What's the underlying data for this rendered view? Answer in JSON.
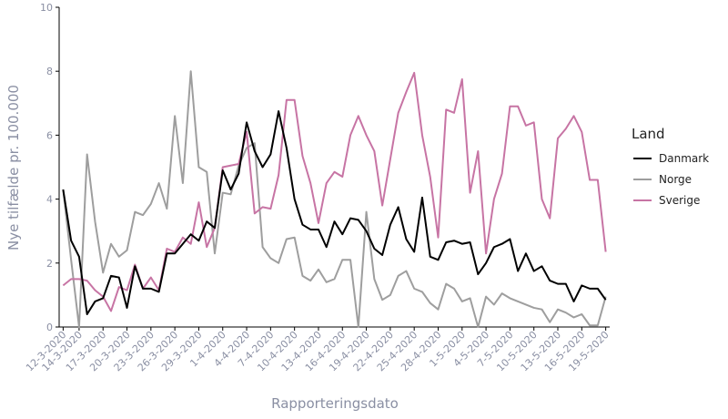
{
  "chart_data": {
    "type": "line",
    "xlabel": "Rapporteringsdato",
    "ylabel": "Nye tilfælde pr. 100.000",
    "ylim": [
      0,
      10
    ],
    "yticks": [
      0,
      2,
      4,
      6,
      8,
      10
    ],
    "grid": false,
    "legend": {
      "title": "Land",
      "placement": "right"
    },
    "x": [
      "12-3-2020",
      "13-3-2020",
      "14-3-2020",
      "15-3-2020",
      "16-3-2020",
      "17-3-2020",
      "18-3-2020",
      "19-3-2020",
      "20-3-2020",
      "21-3-2020",
      "22-3-2020",
      "23-3-2020",
      "24-3-2020",
      "25-3-2020",
      "26-3-2020",
      "27-3-2020",
      "28-3-2020",
      "29-3-2020",
      "30-3-2020",
      "31-3-2020",
      "1-4-2020",
      "2-4-2020",
      "3-4-2020",
      "4-4-2020",
      "5-4-2020",
      "6-4-2020",
      "7-4-2020",
      "8-4-2020",
      "9-4-2020",
      "10-4-2020",
      "11-4-2020",
      "12-4-2020",
      "13-4-2020",
      "14-4-2020",
      "15-4-2020",
      "16-4-2020",
      "17-4-2020",
      "18-4-2020",
      "19-4-2020",
      "20-4-2020",
      "21-4-2020",
      "22-4-2020",
      "23-4-2020",
      "24-4-2020",
      "25-4-2020",
      "26-4-2020",
      "27-4-2020",
      "28-4-2020",
      "29-4-2020",
      "30-4-2020",
      "1-5-2020",
      "2-5-2020",
      "3-5-2020",
      "4-5-2020",
      "5-5-2020",
      "6-5-2020",
      "7-5-2020",
      "8-5-2020",
      "9-5-2020",
      "10-5-2020",
      "11-5-2020",
      "12-5-2020",
      "13-5-2020",
      "14-5-2020",
      "15-5-2020",
      "16-5-2020",
      "17-5-2020",
      "18-5-2020",
      "19-5-2020"
    ],
    "xtick_labels": [
      "12-3-2020",
      "14-3-2020",
      "17-3-2020",
      "20-3-2020",
      "23-3-2020",
      "26-3-2020",
      "29-3-2020",
      "1-4-2020",
      "4-4-2020",
      "7-4-2020",
      "10-4-2020",
      "13-4-2020",
      "16-4-2020",
      "19-4-2020",
      "22-4-2020",
      "25-4-2020",
      "28-4-2020",
      "1-5-2020",
      "4-5-2020",
      "7-5-2020",
      "10-5-2020",
      "13-5-2020",
      "16-5-2020",
      "19-5-2020"
    ],
    "series": [
      {
        "name": "Danmark",
        "color": "#000000",
        "values": [
          4.3,
          2.7,
          2.2,
          0.4,
          0.8,
          0.9,
          1.6,
          1.55,
          0.6,
          1.9,
          1.2,
          1.2,
          1.1,
          2.3,
          2.3,
          2.6,
          2.9,
          2.7,
          3.3,
          3.1,
          4.9,
          4.3,
          4.8,
          6.4,
          5.5,
          5.0,
          5.4,
          6.75,
          5.6,
          4.0,
          3.2,
          3.05,
          3.05,
          2.5,
          3.3,
          2.9,
          3.4,
          3.35,
          3.0,
          2.45,
          2.25,
          3.2,
          3.75,
          2.75,
          2.35,
          4.05,
          2.2,
          2.1,
          2.65,
          2.7,
          2.6,
          2.65,
          1.65,
          2.0,
          2.5,
          2.6,
          2.75,
          1.75,
          2.3,
          1.75,
          1.9,
          1.45,
          1.35,
          1.35,
          0.8,
          1.3,
          1.2,
          1.2,
          0.85
        ]
      },
      {
        "name": "Norge",
        "color": "#9e9e9e",
        "values": [
          4.3,
          2.1,
          0.0,
          5.4,
          3.3,
          1.7,
          2.6,
          2.2,
          2.4,
          3.6,
          3.5,
          3.85,
          4.5,
          3.7,
          6.6,
          4.5,
          8.0,
          5.0,
          4.85,
          2.3,
          4.2,
          4.15,
          5.05,
          5.6,
          5.75,
          2.5,
          2.15,
          2.0,
          2.75,
          2.8,
          1.6,
          1.45,
          1.8,
          1.4,
          1.5,
          2.1,
          2.1,
          0.0,
          3.6,
          1.5,
          0.85,
          1.0,
          1.6,
          1.75,
          1.2,
          1.1,
          0.75,
          0.55,
          1.35,
          1.2,
          0.8,
          0.9,
          0.0,
          0.95,
          0.7,
          1.05,
          0.9,
          0.8,
          0.7,
          0.6,
          0.55,
          0.15,
          0.55,
          0.45,
          0.3,
          0.4,
          0.05,
          0.05,
          0.95
        ]
      },
      {
        "name": "Sverige",
        "color": "#c774a4",
        "values": [
          1.3,
          1.5,
          1.5,
          1.45,
          1.15,
          0.95,
          0.5,
          1.25,
          1.15,
          1.95,
          1.2,
          1.55,
          1.15,
          2.45,
          2.35,
          2.8,
          2.6,
          3.9,
          2.5,
          3.1,
          5.0,
          5.05,
          5.1,
          6.1,
          3.55,
          3.75,
          3.7,
          4.75,
          7.1,
          7.1,
          5.35,
          4.5,
          3.25,
          4.5,
          4.85,
          4.7,
          6.0,
          6.6,
          6.0,
          5.5,
          3.8,
          5.25,
          6.7,
          7.35,
          7.95,
          6.0,
          4.7,
          2.8,
          6.8,
          6.7,
          7.75,
          4.2,
          5.5,
          2.3,
          4.0,
          4.8,
          6.9,
          6.9,
          6.3,
          6.4,
          4.0,
          3.4,
          5.9,
          6.2,
          6.6,
          6.1,
          4.6,
          4.6,
          2.35
        ]
      }
    ]
  }
}
